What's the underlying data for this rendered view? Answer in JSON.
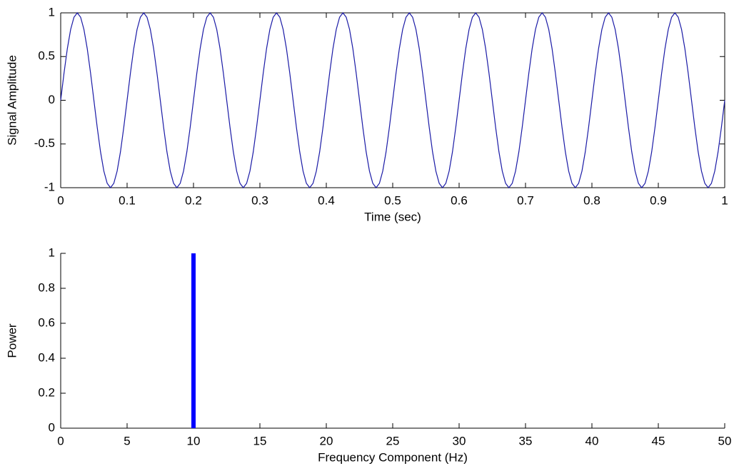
{
  "chart_data": [
    {
      "type": "line",
      "xlabel": "Time (sec)",
      "ylabel": "Signal Amplitude",
      "color": "#1a1aa6",
      "box": true,
      "xlim": [
        0,
        1
      ],
      "ylim": [
        -1,
        1
      ],
      "xticks": [
        0,
        0.1,
        0.2,
        0.3,
        0.4,
        0.5,
        0.6,
        0.7,
        0.8,
        0.9,
        1
      ],
      "yticks": [
        -1,
        -0.5,
        0,
        0.5,
        1
      ],
      "x": [
        0,
        0.005,
        0.01,
        0.015,
        0.02,
        0.025,
        0.03,
        0.035,
        0.04,
        0.045,
        0.05,
        0.055,
        0.06,
        0.065,
        0.07,
        0.075,
        0.08,
        0.085,
        0.09,
        0.095,
        0.1,
        0.105,
        0.11,
        0.115,
        0.12,
        0.125,
        0.13,
        0.135,
        0.14,
        0.145,
        0.15,
        0.155,
        0.16,
        0.165,
        0.17,
        0.175,
        0.18,
        0.185,
        0.19,
        0.195,
        0.2,
        0.205,
        0.21,
        0.215,
        0.22,
        0.225,
        0.23,
        0.235,
        0.24,
        0.245,
        0.25,
        0.255,
        0.26,
        0.265,
        0.27,
        0.275,
        0.28,
        0.285,
        0.29,
        0.295,
        0.3,
        0.305,
        0.31,
        0.315,
        0.32,
        0.325,
        0.33,
        0.335,
        0.34,
        0.345,
        0.35,
        0.355,
        0.36,
        0.365,
        0.37,
        0.375,
        0.38,
        0.385,
        0.39,
        0.395,
        0.4,
        0.405,
        0.41,
        0.415,
        0.42,
        0.425,
        0.43,
        0.435,
        0.44,
        0.445,
        0.45,
        0.455,
        0.46,
        0.465,
        0.47,
        0.475,
        0.48,
        0.485,
        0.49,
        0.495,
        0.5,
        0.505,
        0.51,
        0.515,
        0.52,
        0.525,
        0.53,
        0.535,
        0.54,
        0.545,
        0.55,
        0.555,
        0.56,
        0.565,
        0.57,
        0.575,
        0.58,
        0.585,
        0.59,
        0.595,
        0.6,
        0.605,
        0.61,
        0.615,
        0.62,
        0.625,
        0.63,
        0.635,
        0.64,
        0.645,
        0.65,
        0.655,
        0.66,
        0.665,
        0.67,
        0.675,
        0.68,
        0.685,
        0.69,
        0.695,
        0.7,
        0.705,
        0.71,
        0.715,
        0.72,
        0.725,
        0.73,
        0.735,
        0.74,
        0.745,
        0.75,
        0.755,
        0.76,
        0.765,
        0.77,
        0.775,
        0.78,
        0.785,
        0.79,
        0.795,
        0.8,
        0.805,
        0.81,
        0.815,
        0.82,
        0.825,
        0.83,
        0.835,
        0.84,
        0.845,
        0.85,
        0.855,
        0.86,
        0.865,
        0.87,
        0.875,
        0.88,
        0.885,
        0.89,
        0.895,
        0.9,
        0.905,
        0.91,
        0.915,
        0.92,
        0.925,
        0.93,
        0.935,
        0.94,
        0.945,
        0.95,
        0.955,
        0.96,
        0.965,
        0.97,
        0.975,
        0.98,
        0.985,
        0.99,
        0.995,
        1
      ],
      "values": [
        0,
        0.31,
        0.59,
        0.81,
        0.95,
        1,
        0.95,
        0.81,
        0.59,
        0.31,
        0,
        -0.31,
        -0.59,
        -0.81,
        -0.95,
        -1,
        -0.95,
        -0.81,
        -0.59,
        -0.31,
        0,
        0.31,
        0.59,
        0.81,
        0.95,
        1,
        0.95,
        0.81,
        0.59,
        0.31,
        0,
        -0.31,
        -0.59,
        -0.81,
        -0.95,
        -1,
        -0.95,
        -0.81,
        -0.59,
        -0.31,
        0,
        0.31,
        0.59,
        0.81,
        0.95,
        1,
        0.95,
        0.81,
        0.59,
        0.31,
        0,
        -0.31,
        -0.59,
        -0.81,
        -0.95,
        -1,
        -0.95,
        -0.81,
        -0.59,
        -0.31,
        0,
        0.31,
        0.59,
        0.81,
        0.95,
        1,
        0.95,
        0.81,
        0.59,
        0.31,
        0,
        -0.31,
        -0.59,
        -0.81,
        -0.95,
        -1,
        -0.95,
        -0.81,
        -0.59,
        -0.31,
        0,
        0.31,
        0.59,
        0.81,
        0.95,
        1,
        0.95,
        0.81,
        0.59,
        0.31,
        0,
        -0.31,
        -0.59,
        -0.81,
        -0.95,
        -1,
        -0.95,
        -0.81,
        -0.59,
        -0.31,
        0,
        0.31,
        0.59,
        0.81,
        0.95,
        1,
        0.95,
        0.81,
        0.59,
        0.31,
        0,
        -0.31,
        -0.59,
        -0.81,
        -0.95,
        -1,
        -0.95,
        -0.81,
        -0.59,
        -0.31,
        0,
        0.31,
        0.59,
        0.81,
        0.95,
        1,
        0.95,
        0.81,
        0.59,
        0.31,
        0,
        -0.31,
        -0.59,
        -0.81,
        -0.95,
        -1,
        -0.95,
        -0.81,
        -0.59,
        -0.31,
        0,
        0.31,
        0.59,
        0.81,
        0.95,
        1,
        0.95,
        0.81,
        0.59,
        0.31,
        0,
        -0.31,
        -0.59,
        -0.81,
        -0.95,
        -1,
        -0.95,
        -0.81,
        -0.59,
        -0.31,
        0,
        0.31,
        0.59,
        0.81,
        0.95,
        1,
        0.95,
        0.81,
        0.59,
        0.31,
        0,
        -0.31,
        -0.59,
        -0.81,
        -0.95,
        -1,
        -0.95,
        -0.81,
        -0.59,
        -0.31,
        0,
        0.31,
        0.59,
        0.81,
        0.95,
        1,
        0.95,
        0.81,
        0.59,
        0.31,
        0,
        -0.31,
        -0.59,
        -0.81,
        -0.95,
        -1,
        -0.95,
        -0.81,
        -0.59,
        -0.31,
        0
      ]
    },
    {
      "type": "bar",
      "xlabel": "Frequency Component (Hz)",
      "ylabel": "Power",
      "color": "#0000ff",
      "box": false,
      "xlim": [
        0,
        50
      ],
      "ylim": [
        0,
        1
      ],
      "xticks": [
        0,
        5,
        10,
        15,
        20,
        25,
        30,
        35,
        40,
        45,
        50
      ],
      "yticks": [
        0,
        0.2,
        0.4,
        0.6,
        0.8,
        1
      ],
      "x": [
        10
      ],
      "values": [
        1
      ]
    }
  ]
}
